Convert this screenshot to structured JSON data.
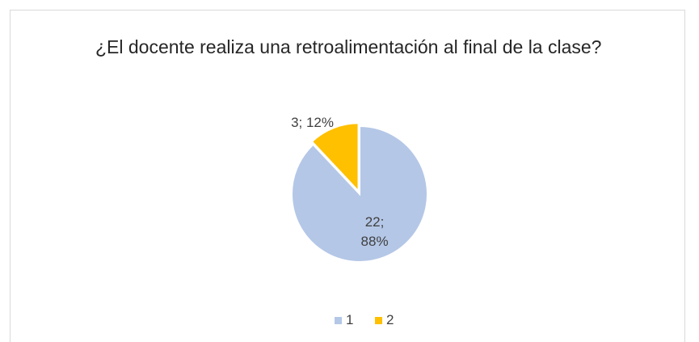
{
  "chart_data": {
    "type": "pie",
    "title": "¿El docente realiza una retroalimentación al final de la clase?",
    "categories": [
      "1",
      "2"
    ],
    "values": [
      22,
      3
    ],
    "value_labels": [
      "22; 88%",
      "3; 12%"
    ],
    "colors": [
      "#b4c7e7",
      "#ffc000"
    ],
    "legend": "bottom"
  }
}
